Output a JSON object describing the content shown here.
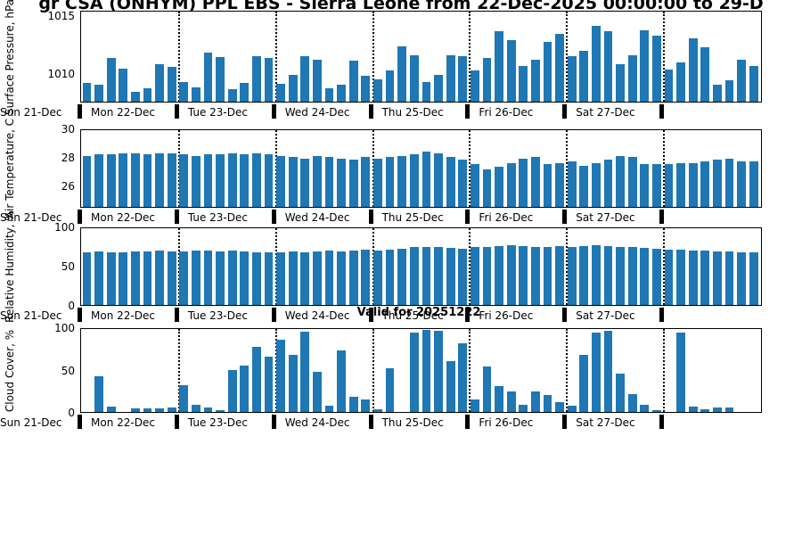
{
  "title": "gr CSA (ONHYM) PPL EBS  - Sierra Leone from 22-Dec-2025 00:00:00 to 29-D",
  "valid_label": "Valid for 20251222",
  "bar_color": "#1f77b4",
  "x_axis": {
    "start_label": "Sun 21-Dec",
    "day_labels": [
      "Mon 22-Dec",
      "Tue 23-Dec",
      "Wed 24-Dec",
      "Thu 25-Dec",
      "Fri 26-Dec",
      "Sat 27-Dec"
    ],
    "bars_per_day": 8
  },
  "chart_data": [
    {
      "type": "bar",
      "ylabel": "Surface Pressure, hPa",
      "ylim": [
        1007.5,
        1015.5
      ],
      "yticks": [
        1010,
        1015
      ],
      "grid": "vertical-dotted-day-boundaries",
      "values": [
        1009.2,
        1009.0,
        1011.4,
        1010.5,
        1008.4,
        1008.7,
        1010.9,
        1010.6,
        1009.3,
        1008.8,
        1011.9,
        1011.5,
        1008.6,
        1009.2,
        1011.6,
        1011.4,
        1009.1,
        1009.9,
        1011.6,
        1011.3,
        1008.7,
        1009.0,
        1011.2,
        1009.8,
        1009.5,
        1010.3,
        1012.5,
        1011.7,
        1009.3,
        1009.9,
        1011.7,
        1011.6,
        1010.3,
        1011.4,
        1013.8,
        1013.0,
        1010.7,
        1011.3,
        1012.9,
        1013.6,
        1011.6,
        1012.1,
        1014.3,
        1013.8,
        1010.9,
        1011.7,
        1013.9,
        1013.4,
        1010.4,
        1011.0,
        1013.2,
        1012.4,
        1009.0,
        1009.4,
        1011.3,
        1010.7
      ]
    },
    {
      "type": "bar",
      "ylabel": "Air Temperature, C",
      "ylim": [
        24.5,
        30
      ],
      "yticks": [
        26,
        28,
        30
      ],
      "grid": "vertical-dotted-day-boundaries",
      "values": [
        28.2,
        28.3,
        28.3,
        28.4,
        28.4,
        28.3,
        28.4,
        28.4,
        28.3,
        28.2,
        28.3,
        28.3,
        28.4,
        28.3,
        28.4,
        28.3,
        28.2,
        28.1,
        28.0,
        28.2,
        28.1,
        28.0,
        27.9,
        28.1,
        28.0,
        28.1,
        28.2,
        28.3,
        28.5,
        28.4,
        28.1,
        27.9,
        27.6,
        27.2,
        27.4,
        27.7,
        28.0,
        28.1,
        27.6,
        27.7,
        27.8,
        27.5,
        27.7,
        27.9,
        28.2,
        28.1,
        27.6,
        27.6,
        27.6,
        27.7,
        27.7,
        27.8,
        27.9,
        28.0,
        27.8,
        27.8
      ]
    },
    {
      "type": "bar",
      "ylabel": "Relative Humidity, %",
      "ylim": [
        0,
        100
      ],
      "yticks": [
        0,
        50,
        100
      ],
      "grid": "vertical-dotted-day-boundaries",
      "values": [
        70,
        71,
        70,
        70,
        71,
        71,
        72,
        71,
        71,
        72,
        72,
        71,
        72,
        71,
        70,
        70,
        70,
        71,
        70,
        71,
        72,
        71,
        72,
        73,
        72,
        73,
        74,
        76,
        77,
        76,
        75,
        74,
        76,
        77,
        78,
        79,
        78,
        76,
        77,
        78,
        76,
        78,
        79,
        78,
        77,
        76,
        75,
        74,
        73,
        73,
        72,
        72,
        71,
        71,
        70,
        70
      ]
    },
    {
      "type": "bar",
      "ylabel": "Cloud Cover, %",
      "ylim": [
        0,
        100
      ],
      "yticks": [
        0,
        50,
        100
      ],
      "grid": "vertical-dotted-day-boundaries",
      "values": [
        0,
        44,
        6,
        0,
        4,
        4,
        4,
        5,
        33,
        9,
        5,
        2,
        51,
        56,
        79,
        67,
        88,
        70,
        98,
        49,
        8,
        75,
        18,
        15,
        3,
        53,
        0,
        97,
        100,
        99,
        62,
        84,
        15,
        55,
        31,
        25,
        9,
        25,
        21,
        12,
        8,
        70,
        97,
        99,
        47,
        22,
        9,
        2,
        0,
        97,
        6,
        3,
        5,
        5,
        0,
        0
      ]
    }
  ]
}
